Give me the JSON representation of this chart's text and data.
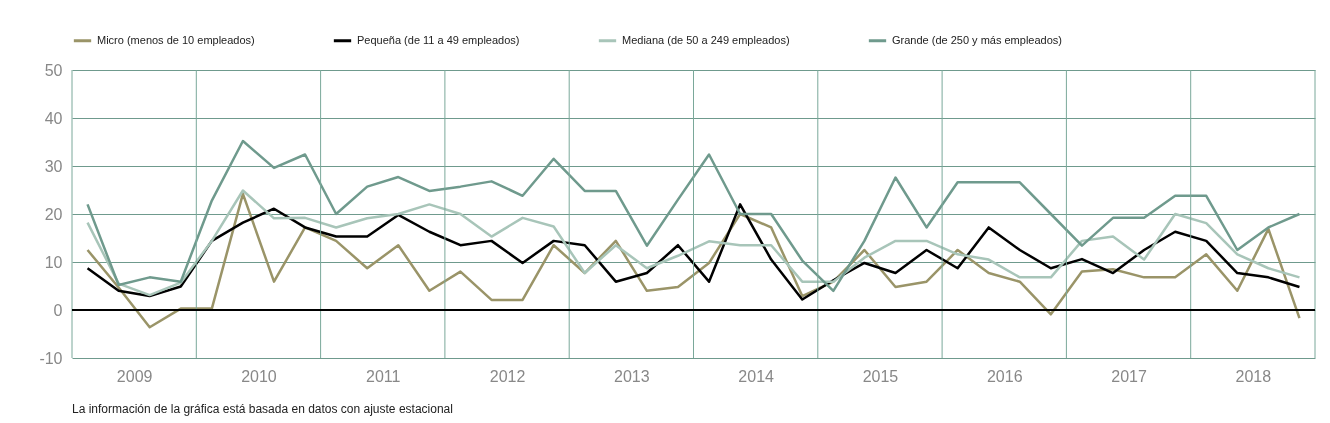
{
  "chart_data": {
    "type": "line",
    "x": [
      2009.125,
      2009.375,
      2009.625,
      2009.875,
      2010.125,
      2010.375,
      2010.625,
      2010.875,
      2011.125,
      2011.375,
      2011.625,
      2011.875,
      2012.125,
      2012.375,
      2012.625,
      2012.875,
      2013.125,
      2013.375,
      2013.625,
      2013.875,
      2014.125,
      2014.375,
      2014.625,
      2014.875,
      2015.125,
      2015.375,
      2015.625,
      2015.875,
      2016.125,
      2016.375,
      2016.625,
      2016.875,
      2017.125,
      2017.375,
      2017.625,
      2017.875,
      2018.125,
      2018.375,
      2018.625,
      2018.875
    ],
    "series": [
      {
        "name": "Micro (menos de 10 empleados)",
        "color": "#9a9468",
        "values": [
          12.5,
          4.7,
          -3.6,
          0.3,
          0.3,
          24.2,
          5.9,
          17.2,
          14.4,
          8.7,
          13.5,
          4,
          8,
          2.1,
          2.1,
          13.5,
          7.7,
          14.4,
          4,
          4.8,
          9.8,
          20,
          17.2,
          2.9,
          5.9,
          12.5,
          4.8,
          5.9,
          12.5,
          7.7,
          5.9,
          -0.9,
          8,
          8.5,
          6.8,
          6.8,
          11.6,
          4,
          16.9,
          -1.7
        ]
      },
      {
        "name": "Pequeña (de 11 a 49 empleados)",
        "color": "#000000",
        "values": [
          8.7,
          4,
          2.9,
          4.9,
          14.4,
          18.2,
          21.1,
          17.2,
          15.3,
          15.3,
          19.8,
          16.3,
          13.5,
          14.4,
          9.8,
          14.4,
          13.5,
          5.9,
          7.7,
          13.5,
          5.9,
          22,
          10.5,
          2.2,
          6.2,
          9.8,
          7.7,
          12.5,
          8.7,
          17.2,
          12.5,
          8.7,
          10.6,
          7.7,
          12.5,
          16.3,
          14.4,
          7.7,
          6.8,
          4.8
        ]
      },
      {
        "name": "Mediana (de 50 a 249 empleados)",
        "color": "#a8c5b9",
        "values": [
          18.2,
          5.5,
          3.1,
          5.7,
          14.4,
          24.9,
          19.1,
          19.2,
          17.2,
          19.1,
          20,
          22,
          20,
          15.3,
          19.2,
          17.4,
          7.7,
          13.5,
          8.7,
          11.3,
          14.3,
          13.5,
          13.5,
          5.9,
          5.9,
          10.9,
          14.4,
          14.4,
          11.6,
          10.5,
          6.8,
          6.8,
          14.4,
          15.3,
          10.5,
          20,
          18.1,
          11.6,
          8.7,
          6.8
        ]
      },
      {
        "name": "Grande (de 250 y más empleados)",
        "color": "#6f9a8d",
        "values": [
          22,
          5.2,
          6.8,
          5.9,
          22.8,
          35.2,
          29.6,
          32.4,
          20,
          25.7,
          27.7,
          24.8,
          25.7,
          26.8,
          23.8,
          31.5,
          24.8,
          24.8,
          13.4,
          23,
          32.4,
          20,
          20,
          10.3,
          4,
          14.4,
          27.6,
          17.2,
          26.6,
          26.6,
          26.6,
          20,
          13.4,
          19.2,
          19.2,
          23.8,
          23.8,
          12.5,
          17.2,
          20
        ]
      }
    ],
    "xlim": [
      2009,
      2019
    ],
    "xticks": [
      {
        "value": 2009,
        "label": null
      },
      {
        "value": 2009.5,
        "label": "2009"
      },
      {
        "value": 2010,
        "label": null
      },
      {
        "value": 2010.5,
        "label": "2010"
      },
      {
        "value": 2011,
        "label": null
      },
      {
        "value": 2011.5,
        "label": "2011"
      },
      {
        "value": 2012,
        "label": null
      },
      {
        "value": 2012.5,
        "label": "2012"
      },
      {
        "value": 2013,
        "label": null
      },
      {
        "value": 2013.5,
        "label": "2013"
      },
      {
        "value": 2014,
        "label": null
      },
      {
        "value": 2014.5,
        "label": "2014"
      },
      {
        "value": 2015,
        "label": null
      },
      {
        "value": 2015.5,
        "label": "2015"
      },
      {
        "value": 2016,
        "label": null
      },
      {
        "value": 2016.5,
        "label": "2016"
      },
      {
        "value": 2017,
        "label": null
      },
      {
        "value": 2017.5,
        "label": "2017"
      },
      {
        "value": 2018,
        "label": null
      },
      {
        "value": 2018.5,
        "label": "2018"
      },
      {
        "value": 2019,
        "label": null
      }
    ],
    "ylim": [
      -10,
      50
    ],
    "yticks": [
      -10,
      0,
      10,
      20,
      30,
      40,
      50
    ],
    "ref_lines": [
      {
        "axis": "y",
        "value": 0,
        "label": null,
        "color": "#000000"
      }
    ],
    "grid": true,
    "legend": "top",
    "marker": "none",
    "line_style": "solid",
    "annotations": [
      "La información de la gráfica está basada en datos con ajuste estacional"
    ]
  }
}
